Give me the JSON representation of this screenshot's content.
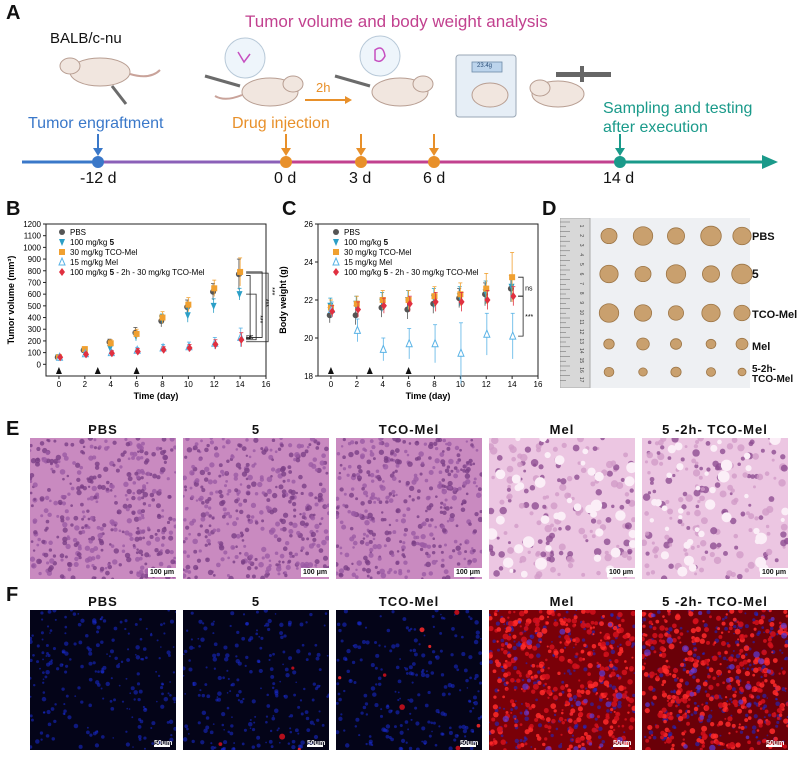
{
  "panel_letters": [
    "A",
    "B",
    "C",
    "D",
    "E",
    "F"
  ],
  "panel_a": {
    "title": "Tumor volume and body weight analysis",
    "mouse_strain": "BALB/c-nu",
    "engraftment_label": "Tumor engraftment",
    "injection_label": "Drug injection",
    "interval_label": "2h",
    "sampling_label_line1": "Sampling and testing",
    "sampling_label_line2": "after execution",
    "scale_readout": "23.4g",
    "timepoints": [
      {
        "label": "-12 d",
        "day": -12
      },
      {
        "label": "0 d",
        "day": 0
      },
      {
        "label": "3 d",
        "day": 3
      },
      {
        "label": "6 d",
        "day": 6
      },
      {
        "label": "14 d",
        "day": 14
      }
    ],
    "colors": {
      "engraft": "#3a78c9",
      "inject": "#e8902a",
      "title": "#c2418f",
      "sample": "#1a9a8a"
    }
  },
  "chart_data": [
    {
      "id": "B",
      "type": "scatter",
      "xlabel": "Time (day)",
      "ylabel": "Tumor volume (mm³)",
      "xlim": [
        -1,
        16
      ],
      "ylim": [
        -100,
        1200
      ],
      "xticks": [
        0,
        2,
        4,
        6,
        8,
        10,
        12,
        14,
        16
      ],
      "yticks": [
        0,
        100,
        200,
        300,
        400,
        500,
        600,
        700,
        800,
        900,
        1000,
        1100,
        1200
      ],
      "injection_days": [
        0,
        3,
        6
      ],
      "series": [
        {
          "name": "PBS",
          "marker": "circle",
          "color": "#555555",
          "x": [
            0,
            2,
            4,
            6,
            8,
            10,
            12,
            14
          ],
          "y": [
            60,
            120,
            190,
            270,
            370,
            490,
            620,
            770
          ],
          "err": [
            15,
            20,
            25,
            45,
            50,
            60,
            70,
            130
          ]
        },
        {
          "name": "100 mg/kg 5",
          "marker": "triangle-down",
          "color": "#2b9fc7",
          "x": [
            0,
            2,
            4,
            6,
            8,
            10,
            12,
            14
          ],
          "y": [
            60,
            110,
            140,
            240,
            390,
            420,
            500,
            600
          ],
          "err": [
            10,
            20,
            25,
            40,
            40,
            60,
            60,
            50
          ]
        },
        {
          "name": "30 mg/kg TCO-Mel",
          "marker": "square",
          "color": "#f0a030",
          "x": [
            0,
            2,
            4,
            6,
            8,
            10,
            12,
            14
          ],
          "y": [
            60,
            130,
            180,
            260,
            400,
            510,
            650,
            790
          ],
          "err": [
            15,
            20,
            30,
            40,
            50,
            60,
            70,
            120
          ]
        },
        {
          "name": "15 mg/kg Mel",
          "marker": "triangle-up-open",
          "color": "#5ab3e6",
          "x": [
            0,
            2,
            4,
            6,
            8,
            10,
            12,
            14
          ],
          "y": [
            60,
            90,
            100,
            120,
            140,
            150,
            180,
            230
          ],
          "err": [
            10,
            15,
            20,
            25,
            30,
            40,
            50,
            80
          ]
        },
        {
          "name": "100 mg/kg 5 - 2h - 30 mg/kg TCO-Mel",
          "marker": "diamond",
          "color": "#e03040",
          "x": [
            0,
            2,
            4,
            6,
            8,
            10,
            12,
            14
          ],
          "y": [
            60,
            85,
            95,
            110,
            125,
            140,
            170,
            210
          ],
          "err": [
            10,
            15,
            20,
            25,
            25,
            30,
            40,
            60
          ]
        }
      ],
      "significance": [
        "ns",
        "***",
        "***",
        "***"
      ]
    },
    {
      "id": "C",
      "type": "scatter",
      "xlabel": "Time (day)",
      "ylabel": "Body weight (g)",
      "xlim": [
        -1,
        16
      ],
      "ylim": [
        18,
        26
      ],
      "xticks": [
        0,
        2,
        4,
        6,
        8,
        10,
        12,
        14,
        16
      ],
      "yticks": [
        18,
        20,
        22,
        24,
        26
      ],
      "injection_days": [
        0,
        3,
        6
      ],
      "series": [
        {
          "name": "PBS",
          "marker": "circle",
          "color": "#555555",
          "x": [
            0,
            2,
            4,
            6,
            8,
            10,
            12,
            14
          ],
          "y": [
            21.2,
            21.2,
            21.6,
            21.5,
            21.8,
            22.1,
            22.3,
            22.6
          ],
          "err": [
            0.4,
            0.5,
            0.5,
            0.5,
            0.5,
            0.5,
            0.6,
            0.7
          ]
        },
        {
          "name": "100 mg/kg 5",
          "marker": "triangle-down",
          "color": "#2b9fc7",
          "x": [
            0,
            2,
            4,
            6,
            8,
            10,
            12,
            14
          ],
          "y": [
            21.7,
            21.8,
            21.9,
            22.0,
            22.1,
            22.2,
            22.4,
            22.7
          ],
          "err": [
            0.4,
            0.4,
            0.5,
            0.5,
            0.5,
            0.5,
            0.6,
            0.6
          ]
        },
        {
          "name": "30 mg/kg TCO-Mel",
          "marker": "square",
          "color": "#f0a030",
          "x": [
            0,
            2,
            4,
            6,
            8,
            10,
            12,
            14
          ],
          "y": [
            21.6,
            21.8,
            22.0,
            22.0,
            22.2,
            22.3,
            22.6,
            23.2
          ],
          "err": [
            0.4,
            0.4,
            0.5,
            0.5,
            0.5,
            0.6,
            0.8,
            1.3
          ]
        },
        {
          "name": "15 mg/kg Mel",
          "marker": "triangle-up-open",
          "color": "#5ab3e6",
          "x": [
            0,
            2,
            4,
            6,
            8,
            10,
            12,
            14
          ],
          "y": [
            21.5,
            20.4,
            19.4,
            19.7,
            19.7,
            19.2,
            20.2,
            20.1
          ],
          "err": [
            0.4,
            0.6,
            0.6,
            0.8,
            1.0,
            1.6,
            1.1,
            1.2
          ]
        },
        {
          "name": "100 mg/kg 5 - 2h - 30 mg/kg TCO-Mel",
          "marker": "diamond",
          "color": "#e03040",
          "x": [
            0,
            2,
            4,
            6,
            8,
            10,
            12,
            14
          ],
          "y": [
            21.4,
            21.5,
            21.7,
            21.8,
            21.9,
            21.9,
            22.0,
            22.2
          ],
          "err": [
            0.3,
            0.4,
            0.4,
            0.4,
            0.5,
            0.5,
            0.5,
            0.5
          ]
        }
      ],
      "significance": [
        "ns",
        "***"
      ]
    }
  ],
  "panel_d": {
    "row_labels": [
      "PBS",
      "5",
      "TCO-Mel",
      "Mel",
      "5-2h-",
      "TCO-Mel"
    ],
    "ruler_numbers": [
      "1",
      "2",
      "3",
      "4",
      "5",
      "6",
      "7",
      "8",
      "9",
      "10",
      "11",
      "12",
      "13",
      "14",
      "15",
      "16",
      "17"
    ]
  },
  "panel_e": {
    "titles": [
      "PBS",
      "5",
      "TCO-Mel",
      "Mel",
      "5 -2h- TCO-Mel"
    ],
    "scale_bar": "100 μm"
  },
  "panel_f": {
    "titles": [
      "PBS",
      "5",
      "TCO-Mel",
      "Mel",
      "5 -2h- TCO-Mel"
    ],
    "scale_bar": "50μm"
  }
}
